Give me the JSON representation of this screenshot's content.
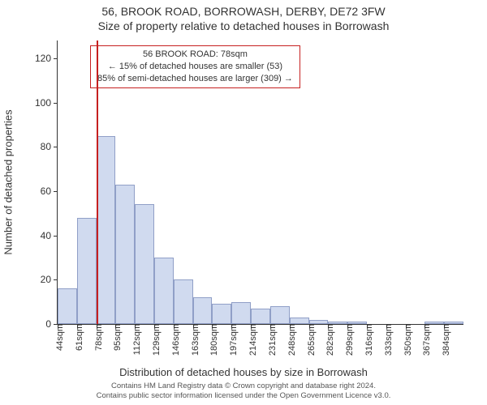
{
  "title_line1": "56, BROOK ROAD, BORROWASH, DERBY, DE72 3FW",
  "title_line2": "Size of property relative to detached houses in Borrowash",
  "ylabel": "Number of detached properties",
  "xlabel": "Distribution of detached houses by size in Borrowash",
  "footer_line1": "Contains HM Land Registry data © Crown copyright and database right 2024.",
  "footer_line2": "Contains public sector information licensed under the Open Government Licence v3.0.",
  "callout": {
    "line1": "56 BROOK ROAD: 78sqm",
    "line2": "← 15% of detached houses are smaller (53)",
    "line3": "85% of semi-detached houses are larger (309) →"
  },
  "chart": {
    "type": "histogram",
    "ymax": 128,
    "yticks": [
      0,
      20,
      40,
      60,
      80,
      100,
      120
    ],
    "xtick_labels": [
      "44sqm",
      "61sqm",
      "78sqm",
      "95sqm",
      "112sqm",
      "129sqm",
      "146sqm",
      "163sqm",
      "180sqm",
      "197sqm",
      "214sqm",
      "231sqm",
      "248sqm",
      "265sqm",
      "282sqm",
      "299sqm",
      "316sqm",
      "333sqm",
      "350sqm",
      "367sqm",
      "384sqm"
    ],
    "bar_values": [
      16,
      48,
      85,
      63,
      54,
      30,
      20,
      12,
      9,
      10,
      7,
      8,
      3,
      2,
      1,
      1,
      0,
      0,
      0,
      1,
      1
    ],
    "bar_fill": "rgba(120,150,210,0.35)",
    "bar_stroke": "rgba(80,100,160,0.5)",
    "ref_line_index": 2,
    "ref_line_color": "#c62020",
    "background_color": "#ffffff"
  }
}
